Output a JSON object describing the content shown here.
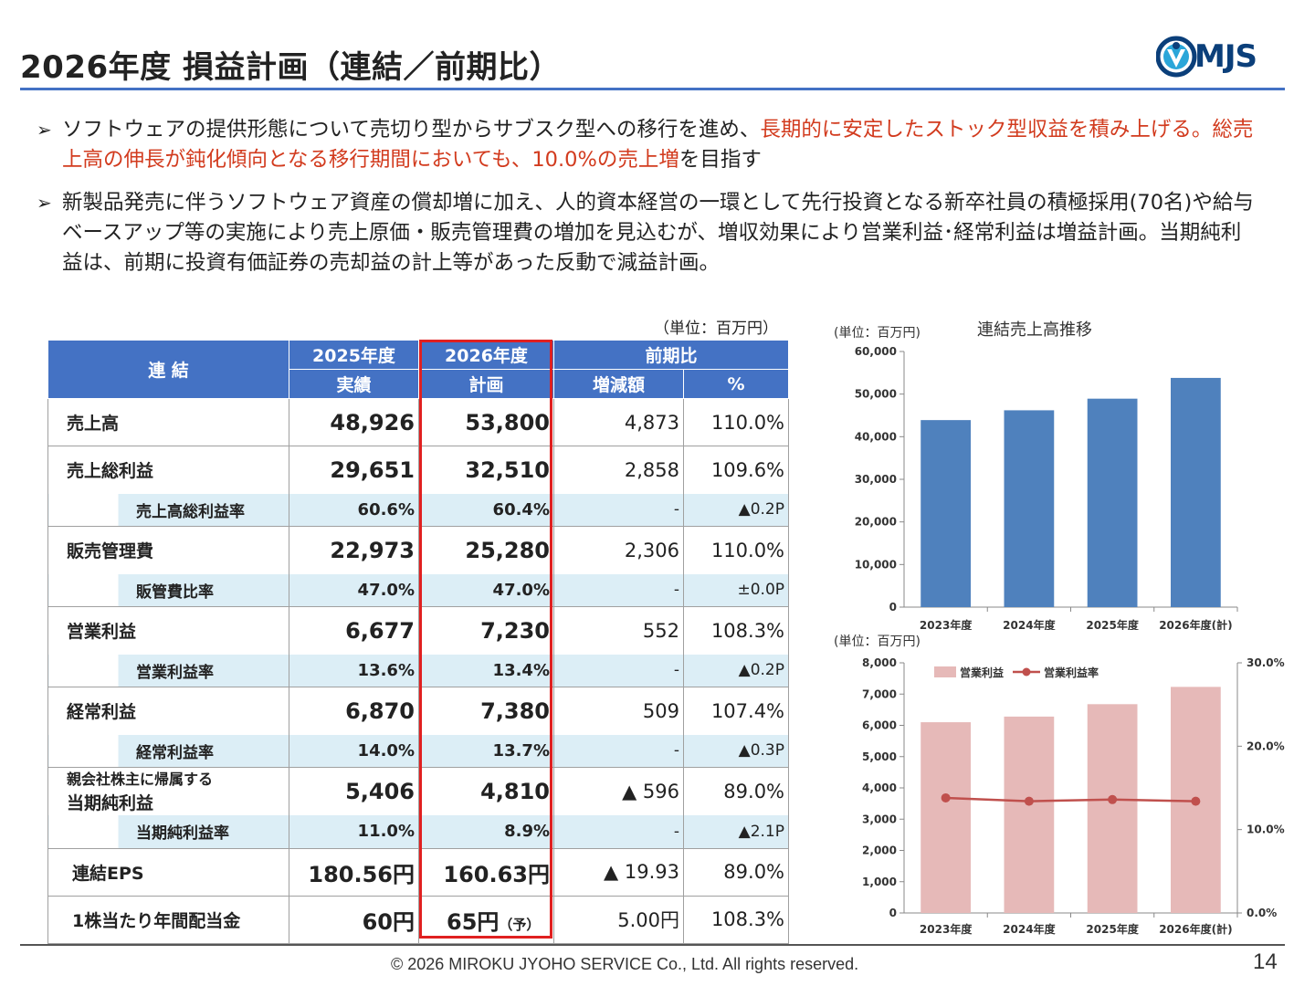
{
  "header": {
    "title": "2026年度 損益計画（連結／前期比）",
    "logo_text": "MJS"
  },
  "bullets": {
    "b1_a": "ソフトウェアの提供形態について売切り型からサブスク型への移行を進め、",
    "b1_red": "長期的に安定したストック型収益を積み上げる。総売上高の伸長が鈍化傾向となる移行期間においても、10.0%の売上増",
    "b1_c": "を目指す",
    "b2": "新製品発売に伴うソフトウェア資産の償却増に加え、人的資本経営の一環として先行投資となる新卒社員の積極採用(70名)や給与ベースアップ等の実施により売上原価・販売管理費の増加を見込むが、増収効果により営業利益･経常利益は増益計画。当期純利益は、前期に投資有価証券の売却益の計上等があった反動で減益計画。"
  },
  "table": {
    "unit": "（単位：百万円）",
    "head": {
      "group": "連 結",
      "y2025": "2025年度",
      "y2025_sub": "実績",
      "y2026": "2026年度",
      "y2026_sub": "計画",
      "comp": "前期比",
      "diff": "増減額",
      "pct": "%"
    },
    "rows": [
      {
        "label": "売上高",
        "a": "48,926",
        "b": "53,800",
        "d": "4,873",
        "p": "110.0%"
      },
      {
        "label": "売上総利益",
        "a": "29,651",
        "b": "32,510",
        "d": "2,858",
        "p": "109.6%",
        "sub": {
          "label": "売上高総利益率",
          "a": "60.6%",
          "b": "60.4%",
          "d": "-",
          "p": "▲0.2P"
        }
      },
      {
        "label": "販売管理費",
        "a": "22,973",
        "b": "25,280",
        "d": "2,306",
        "p": "110.0%",
        "sub": {
          "label": "販管費比率",
          "a": "47.0%",
          "b": "47.0%",
          "d": "-",
          "p": "±0.0P"
        }
      },
      {
        "label": "営業利益",
        "a": "6,677",
        "b": "7,230",
        "d": "552",
        "p": "108.3%",
        "sub": {
          "label": "営業利益率",
          "a": "13.6%",
          "b": "13.4%",
          "d": "-",
          "p": "▲0.2P"
        }
      },
      {
        "label": "経常利益",
        "a": "6,870",
        "b": "7,380",
        "d": "509",
        "p": "107.4%",
        "sub": {
          "label": "経常利益率",
          "a": "14.0%",
          "b": "13.7%",
          "d": "-",
          "p": "▲0.3P"
        }
      },
      {
        "label": "親会社株主に帰属する",
        "label2": "当期純利益",
        "a": "5,406",
        "b": "4,810",
        "d": "▲ 596",
        "p": "89.0%",
        "sub": {
          "label": "当期純利益率",
          "a": "11.0%",
          "b": "8.9%",
          "d": "-",
          "p": "▲2.1P"
        }
      },
      {
        "label": "連結EPS",
        "a": "180.56円",
        "b": "160.63円",
        "d": "▲ 19.93",
        "p": "89.0%"
      },
      {
        "label": "1株当たり年間配当金",
        "a": "60円",
        "b": "65円",
        "b_note": "（予）",
        "d": "5.00円",
        "p": "108.3%"
      }
    ]
  },
  "chart_data": [
    {
      "type": "bar",
      "title": "連結売上高推移",
      "ylabel": "(単位：百万円)",
      "categories": [
        "2023年度",
        "2024年度",
        "2025年度",
        "2026年度(計)"
      ],
      "values": [
        43900,
        46200,
        48926,
        53800
      ],
      "ylim": [
        0,
        60000
      ],
      "yticks": [
        "0",
        "10,000",
        "20,000",
        "30,000",
        "40,000",
        "50,000",
        "60,000"
      ],
      "color": "#4f81bd"
    },
    {
      "type": "bar",
      "ylabel": "(単位：百万円)",
      "categories": [
        "2023年度",
        "2024年度",
        "2025年度",
        "2026年度(計)"
      ],
      "ylim": [
        0,
        8000
      ],
      "yticks": [
        "0",
        "1,000",
        "2,000",
        "3,000",
        "4,000",
        "5,000",
        "6,000",
        "7,000",
        "8,000"
      ],
      "y2lim": [
        0,
        30
      ],
      "y2ticks": [
        "0.0%",
        "10.0%",
        "20.0%",
        "30.0%"
      ],
      "series": [
        {
          "name": "営業利益",
          "type": "bar",
          "values": [
            6100,
            6280,
            6677,
            7230
          ],
          "color": "#e6b9b8"
        },
        {
          "name": "営業利益率",
          "type": "line",
          "axis": "right",
          "values": [
            13.8,
            13.4,
            13.6,
            13.4
          ],
          "color": "#c0504d"
        }
      ],
      "legend": "top-left"
    }
  ],
  "footer": {
    "copyright": "© 2026 MIROKU JYOHO SERVICE Co., Ltd. All rights reserved.",
    "page": "14"
  }
}
